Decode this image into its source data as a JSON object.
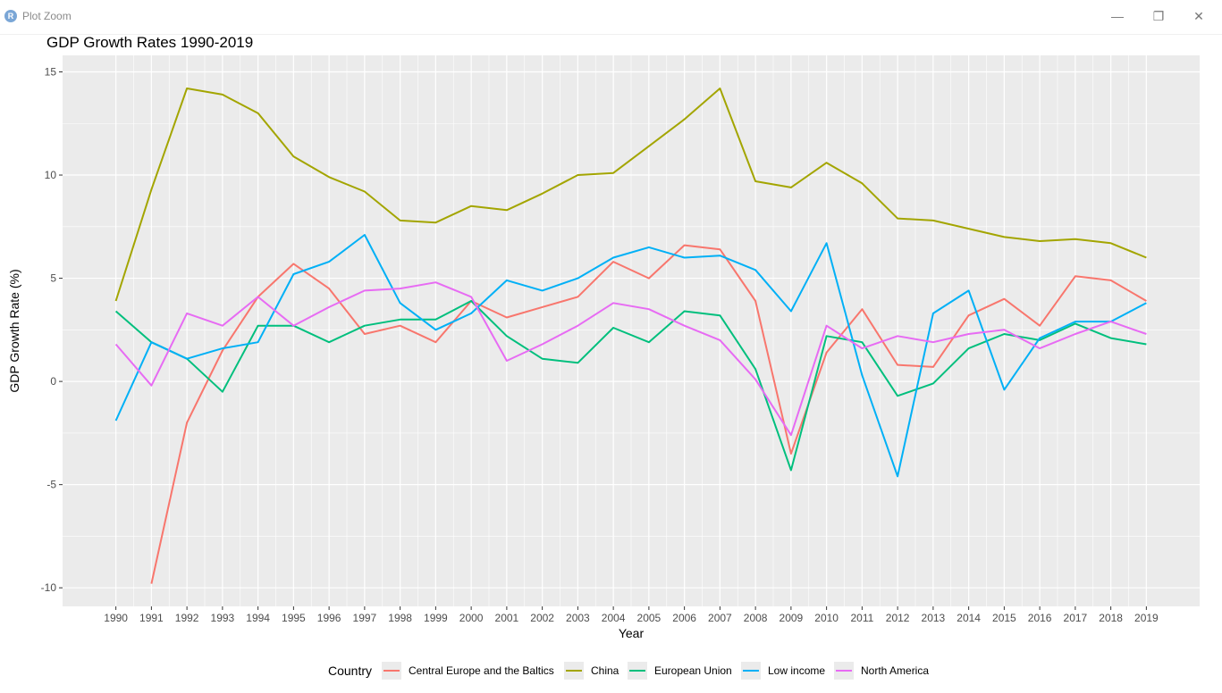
{
  "window": {
    "title": "Plot Zoom",
    "app_icon_letter": "R",
    "minimize_glyph": "—",
    "maximize_glyph": "❐",
    "close_glyph": "✕"
  },
  "colors": {
    "panel_bg": "#EBEBEB",
    "grid": "#FFFFFF",
    "axis_text": "#4D4D4D"
  },
  "chart_data": {
    "type": "line",
    "title": "GDP Growth Rates 1990-2019",
    "xlabel": "Year",
    "ylabel": "GDP Growth Rate (%)",
    "xlim": [
      1988.5,
      2020.5
    ],
    "ylim": [
      -10.9,
      15.8
    ],
    "yticks": [
      -10,
      -5,
      0,
      5,
      10,
      15
    ],
    "grid": true,
    "legend_title": "Country",
    "legend_position": "bottom",
    "x": [
      1990,
      1991,
      1992,
      1993,
      1994,
      1995,
      1996,
      1997,
      1998,
      1999,
      2000,
      2001,
      2002,
      2003,
      2004,
      2005,
      2006,
      2007,
      2008,
      2009,
      2010,
      2011,
      2012,
      2013,
      2014,
      2015,
      2016,
      2017,
      2018,
      2019
    ],
    "series": [
      {
        "name": "Central Europe and the Baltics",
        "color": "#F8766D",
        "values": [
          null,
          -9.8,
          -2.0,
          1.5,
          4.1,
          5.7,
          4.5,
          2.3,
          2.7,
          1.9,
          3.9,
          3.1,
          3.6,
          4.1,
          5.8,
          5.0,
          6.6,
          6.4,
          3.9,
          -3.5,
          1.4,
          3.5,
          0.8,
          0.7,
          3.2,
          4.0,
          2.7,
          5.1,
          4.9,
          3.9
        ]
      },
      {
        "name": "China",
        "color": "#A3A500",
        "values": [
          3.9,
          9.3,
          14.2,
          13.9,
          13.0,
          10.9,
          9.9,
          9.2,
          7.8,
          7.7,
          8.5,
          8.3,
          9.1,
          10.0,
          10.1,
          11.4,
          12.7,
          14.2,
          9.7,
          9.4,
          10.6,
          9.6,
          7.9,
          7.8,
          7.4,
          7.0,
          6.8,
          6.9,
          6.7,
          6.0
        ]
      },
      {
        "name": "European Union",
        "color": "#00BF7D",
        "values": [
          3.4,
          1.9,
          1.1,
          -0.5,
          2.7,
          2.7,
          1.9,
          2.7,
          3.0,
          3.0,
          3.9,
          2.2,
          1.1,
          0.9,
          2.6,
          1.9,
          3.4,
          3.2,
          0.6,
          -4.3,
          2.2,
          1.9,
          -0.7,
          -0.1,
          1.6,
          2.3,
          2.0,
          2.8,
          2.1,
          1.8
        ]
      },
      {
        "name": "Low income",
        "color": "#00B0F6",
        "values": [
          -1.9,
          1.9,
          1.1,
          1.6,
          1.9,
          5.2,
          5.8,
          7.1,
          3.8,
          2.5,
          3.3,
          4.9,
          4.4,
          5.0,
          6.0,
          6.5,
          6.0,
          6.1,
          5.4,
          3.4,
          6.7,
          0.3,
          -4.6,
          3.3,
          4.4,
          -0.4,
          2.1,
          2.9,
          2.9,
          3.8
        ]
      },
      {
        "name": "North America",
        "color": "#E76BF3",
        "values": [
          1.8,
          -0.2,
          3.3,
          2.7,
          4.1,
          2.7,
          3.6,
          4.4,
          4.5,
          4.8,
          4.1,
          1.0,
          1.8,
          2.7,
          3.8,
          3.5,
          2.7,
          2.0,
          0.1,
          -2.6,
          2.7,
          1.6,
          2.2,
          1.9,
          2.3,
          2.5,
          1.6,
          2.3,
          2.9,
          2.3
        ]
      }
    ]
  }
}
